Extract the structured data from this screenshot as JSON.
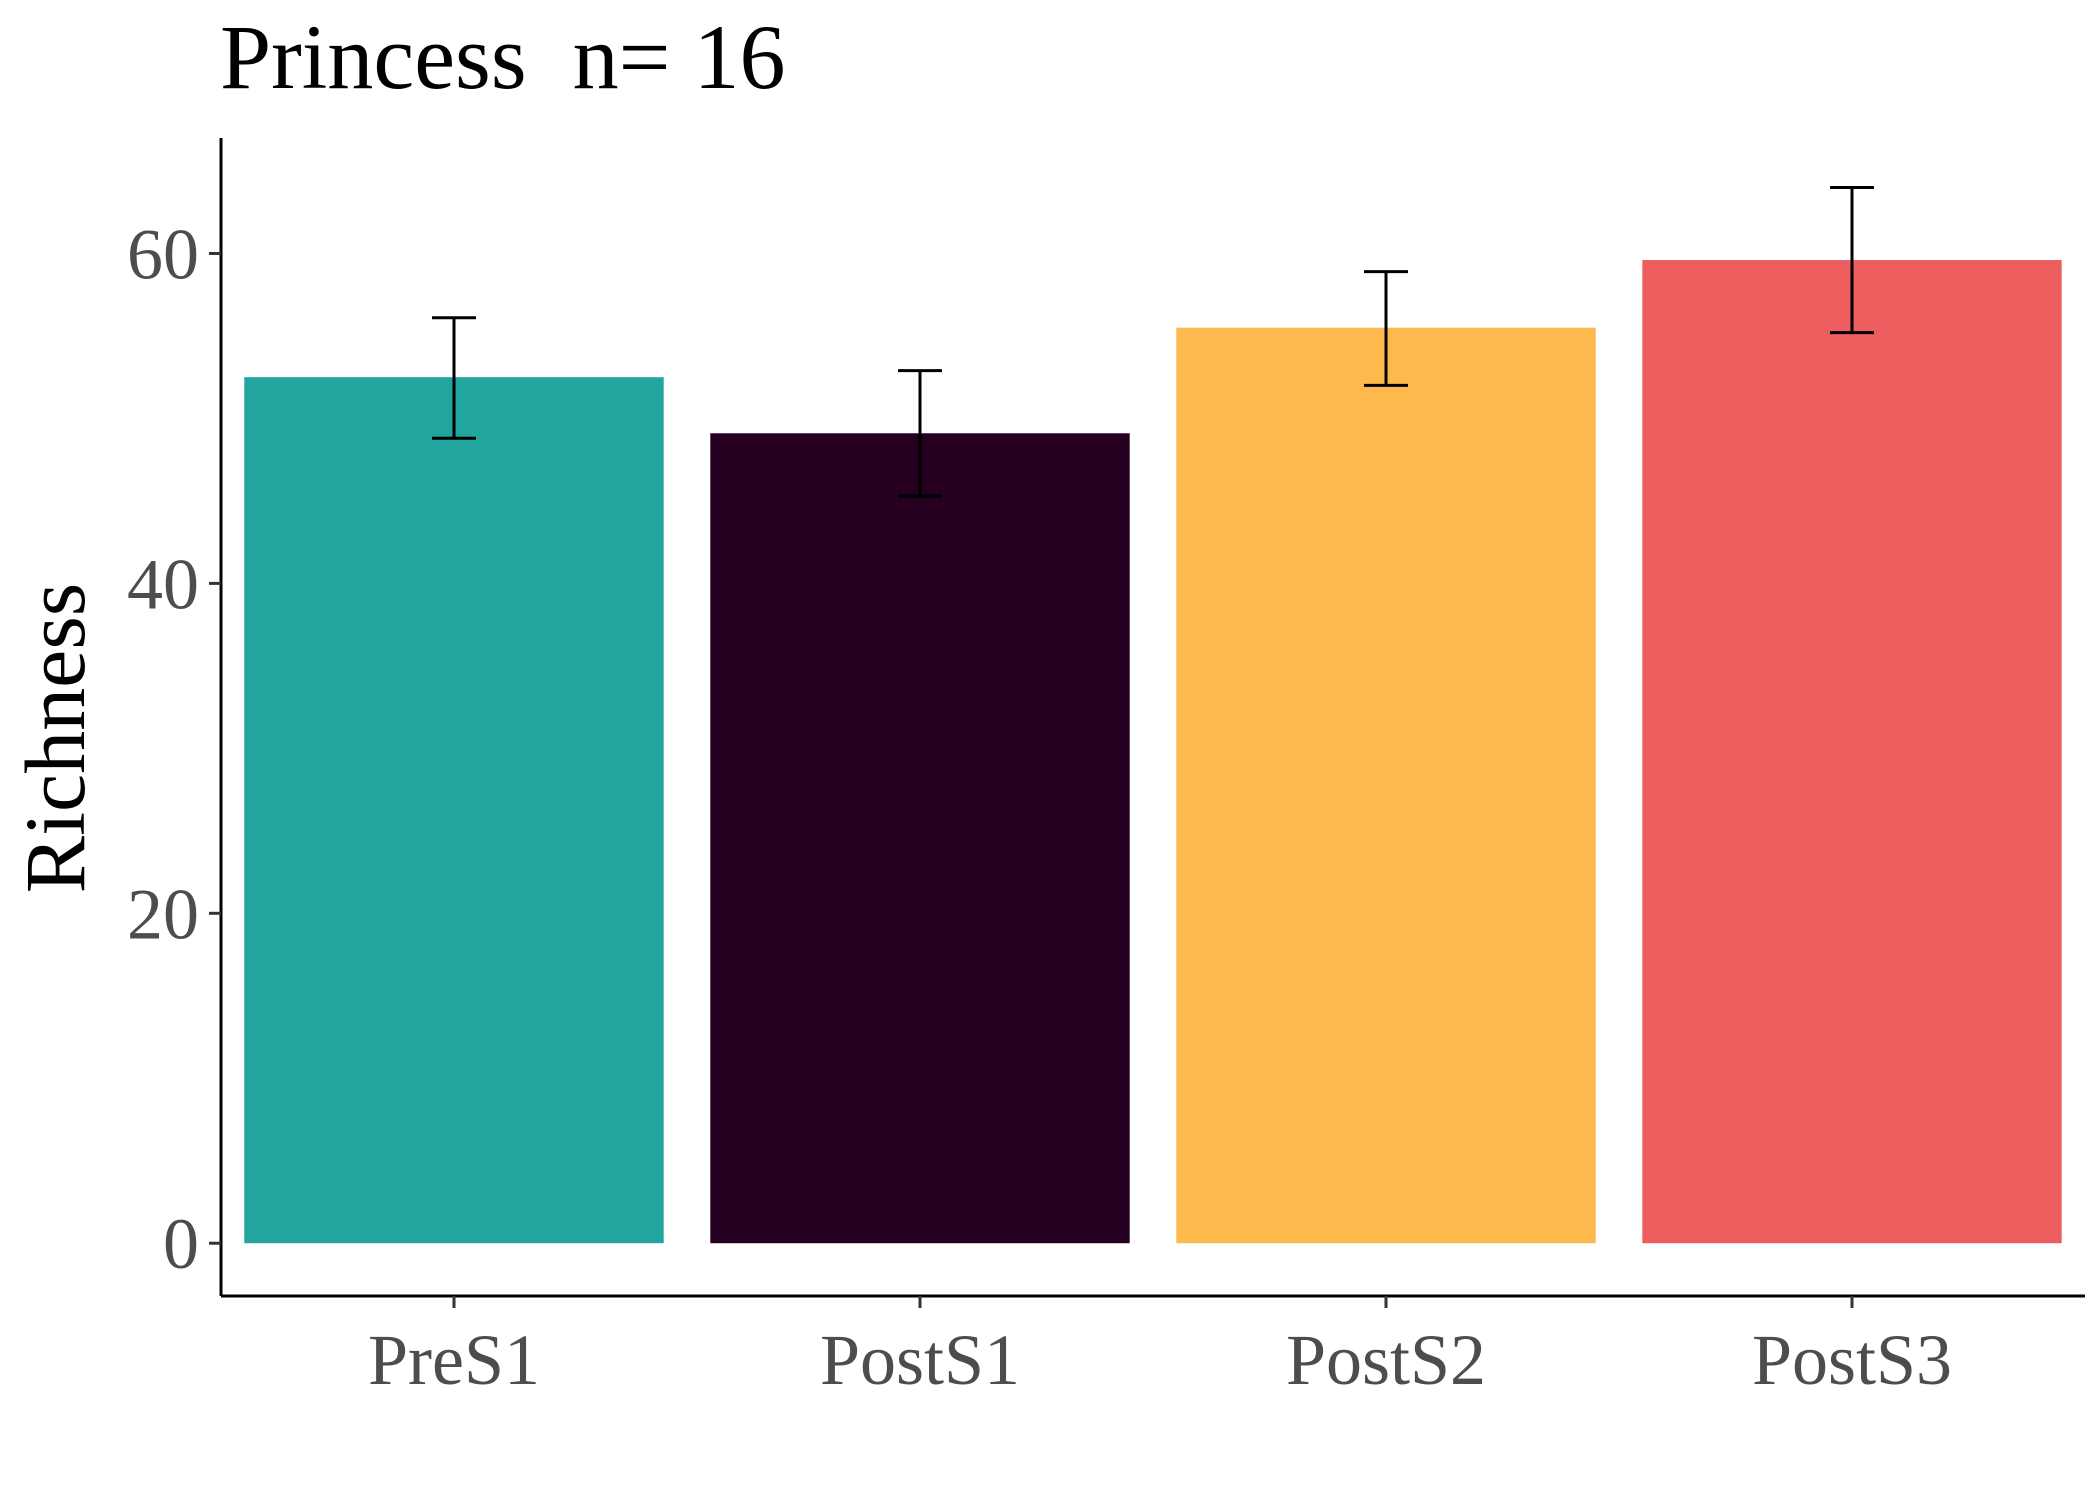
{
  "chart_data": {
    "type": "bar",
    "title": "Princess  n= 16",
    "xlabel": "",
    "ylabel": "Richness",
    "categories": [
      "PreS1",
      "PostS1",
      "PostS2",
      "PostS3"
    ],
    "values": [
      52.5,
      49.1,
      55.5,
      59.6
    ],
    "error_low": [
      48.8,
      45.3,
      52.0,
      55.2
    ],
    "error_high": [
      56.1,
      52.9,
      58.9,
      64.0
    ],
    "colors": [
      "#21A59E",
      "#250020",
      "#FEB94C",
      "#EE5D5D"
    ],
    "ylim": [
      -3.2,
      67
    ],
    "yticks": [
      0,
      20,
      40,
      60
    ],
    "ytick_labels": [
      "0",
      "20",
      "40",
      "60"
    ],
    "grid": false,
    "legend": "none"
  }
}
